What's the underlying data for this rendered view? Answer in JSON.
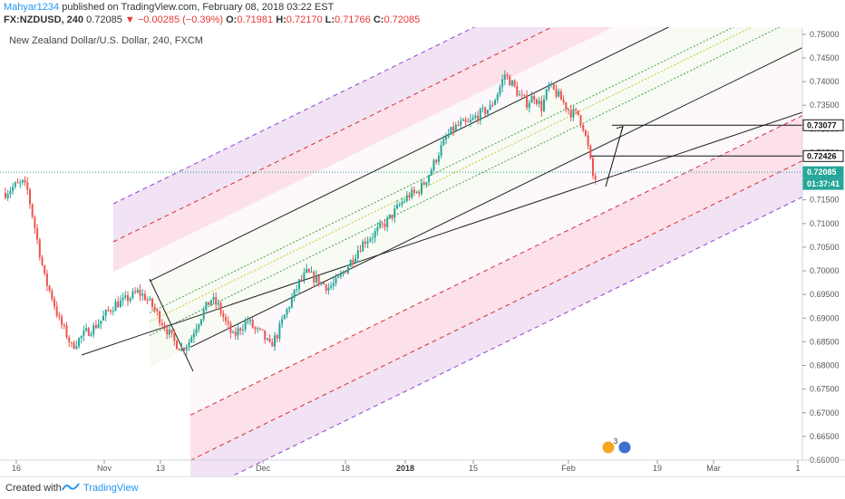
{
  "header": {
    "author": "Mahyar1234",
    "published_text": "published on TradingView.com, February 08, 2018 03:22 EST",
    "symbol": "FX:NZDUSD, 240",
    "last": "0.72085",
    "change": "−0.00285 (−0.39%)",
    "open_label": "O:",
    "open": "0.71981",
    "high_label": "H:",
    "high": "0.72170",
    "low_label": "L:",
    "low": "0.71766",
    "close_label": "C:",
    "close": "0.72085"
  },
  "footer": {
    "created_with": "Created with",
    "brand": "TradingView"
  },
  "chart_data": {
    "type": "candlestick",
    "title": "New Zealand Dollar/U.S. Dollar, 240, FXCM",
    "ylim": [
      0.66,
      0.7515
    ],
    "y_ticks": [
      "0.75000",
      "0.74500",
      "0.74000",
      "0.73500",
      "0.73000",
      "0.72500",
      "0.72000",
      "0.71500",
      "0.71000",
      "0.70500",
      "0.70000",
      "0.69500",
      "0.69000",
      "0.68500",
      "0.68000",
      "0.67500",
      "0.67000",
      "0.66500",
      "0.66000"
    ],
    "x_ticks": [
      {
        "label": "16",
        "bold": false
      },
      {
        "label": "Nov",
        "bold": false
      },
      {
        "label": "13",
        "bold": false
      },
      {
        "label": "Dec",
        "bold": false
      },
      {
        "label": "18",
        "bold": false
      },
      {
        "label": "2018",
        "bold": true
      },
      {
        "label": "15",
        "bold": false
      },
      {
        "label": "Feb",
        "bold": false
      },
      {
        "label": "19",
        "bold": false
      },
      {
        "label": "Mar",
        "bold": false
      },
      {
        "label": "1",
        "bold": false
      }
    ],
    "price_path": [
      [
        0,
        0.7165
      ],
      [
        4,
        0.718
      ],
      [
        7,
        0.7185
      ],
      [
        9,
        0.717
      ],
      [
        13,
        0.7065
      ],
      [
        16,
        0.6985
      ],
      [
        19,
        0.6945
      ],
      [
        22,
        0.6895
      ],
      [
        25,
        0.6865
      ],
      [
        27,
        0.684
      ],
      [
        30,
        0.6855
      ],
      [
        33,
        0.687
      ],
      [
        36,
        0.688
      ],
      [
        39,
        0.6895
      ],
      [
        42,
        0.6915
      ],
      [
        45,
        0.693
      ],
      [
        48,
        0.6935
      ],
      [
        51,
        0.6945
      ],
      [
        54,
        0.6955
      ],
      [
        57,
        0.6945
      ],
      [
        60,
        0.6925
      ],
      [
        63,
        0.69
      ],
      [
        66,
        0.6875
      ],
      [
        69,
        0.685
      ],
      [
        72,
        0.6835
      ],
      [
        75,
        0.685
      ],
      [
        78,
        0.6885
      ],
      [
        81,
        0.6915
      ],
      [
        84,
        0.694
      ],
      [
        87,
        0.6925
      ],
      [
        90,
        0.689
      ],
      [
        93,
        0.686
      ],
      [
        96,
        0.688
      ],
      [
        99,
        0.6895
      ],
      [
        102,
        0.6875
      ],
      [
        105,
        0.6865
      ],
      [
        108,
        0.684
      ],
      [
        111,
        0.6865
      ],
      [
        114,
        0.6905
      ],
      [
        117,
        0.694
      ],
      [
        120,
        0.6975
      ],
      [
        123,
        0.6995
      ],
      [
        126,
        0.6985
      ],
      [
        129,
        0.6975
      ],
      [
        132,
        0.6965
      ],
      [
        135,
        0.6975
      ],
      [
        138,
        0.6995
      ],
      [
        141,
        0.702
      ],
      [
        144,
        0.7045
      ],
      [
        147,
        0.7065
      ],
      [
        150,
        0.7075
      ],
      [
        153,
        0.709
      ],
      [
        156,
        0.7105
      ],
      [
        159,
        0.7125
      ],
      [
        162,
        0.7145
      ],
      [
        165,
        0.716
      ],
      [
        168,
        0.7165
      ],
      [
        171,
        0.7185
      ],
      [
        174,
        0.7215
      ],
      [
        177,
        0.725
      ],
      [
        180,
        0.728
      ],
      [
        183,
        0.73
      ],
      [
        186,
        0.731
      ],
      [
        189,
        0.731
      ],
      [
        192,
        0.7325
      ],
      [
        195,
        0.7335
      ],
      [
        198,
        0.7345
      ],
      [
        201,
        0.7375
      ],
      [
        204,
        0.7415
      ],
      [
        207,
        0.7395
      ],
      [
        210,
        0.737
      ],
      [
        213,
        0.7355
      ],
      [
        216,
        0.737
      ],
      [
        219,
        0.7345
      ],
      [
        222,
        0.739
      ],
      [
        225,
        0.7375
      ],
      [
        228,
        0.7355
      ],
      [
        231,
        0.7335
      ],
      [
        234,
        0.733
      ],
      [
        236,
        0.7305
      ],
      [
        238,
        0.726
      ],
      [
        240,
        0.72
      ],
      [
        241,
        0.7195
      ]
    ],
    "levels": [
      {
        "label": "0.73077",
        "style": "black-box"
      },
      {
        "label": "0.72426",
        "style": "black-box"
      },
      {
        "label": "0.72085",
        "style": "last-price"
      },
      {
        "label": "01:37:41",
        "style": "countdown"
      }
    ],
    "annotations": {
      "projection": {
        "from": 0.7178,
        "to": 0.7305
      },
      "calendar_badge": "3"
    }
  }
}
